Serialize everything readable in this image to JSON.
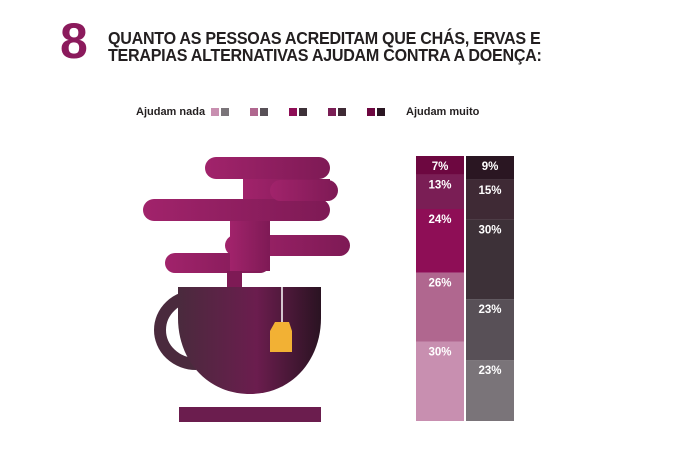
{
  "header": {
    "number": "8",
    "title_line1": "QUANTO AS PESSOAS ACREDITAM QUE CHÁS, ERVAS E",
    "title_line2": "TERAPIAS ALTERNATIVAS AJUDAM CONTRA A DOENÇA:"
  },
  "colors": {
    "accent": "#8b1a5c",
    "text": "#231f20",
    "teabag": "#f2b134"
  },
  "legend": {
    "left_label": "Ajudam nada",
    "right_label": "Ajudam muito",
    "pairs": [
      [
        "#c88fb0",
        "#7a7479"
      ],
      [
        "#b0678f",
        "#585057"
      ],
      [
        "#8e0e56",
        "#3d3138"
      ],
      [
        "#7a1e55",
        "#3f2a35"
      ],
      [
        "#6d0740",
        "#2a1622"
      ]
    ]
  },
  "chart_data": {
    "type": "stacked-bar",
    "ylim": [
      0,
      100
    ],
    "levels_bottom_to_top": [
      "1",
      "2",
      "3",
      "4",
      "5"
    ],
    "series": [
      {
        "values": [
          30,
          26,
          24,
          13,
          7
        ],
        "labels": [
          "30%",
          "26%",
          "24%",
          "13%",
          "7%"
        ],
        "colors": [
          "#c88fb0",
          "#b0678f",
          "#8e0e56",
          "#7a1e55",
          "#6d0740"
        ]
      },
      {
        "values": [
          23,
          23,
          30,
          15,
          9
        ],
        "labels": [
          "23%",
          "23%",
          "30%",
          "15%",
          "9%"
        ],
        "colors": [
          "#7a7479",
          "#585057",
          "#3d3138",
          "#3f2a35",
          "#2a1622"
        ]
      }
    ]
  }
}
